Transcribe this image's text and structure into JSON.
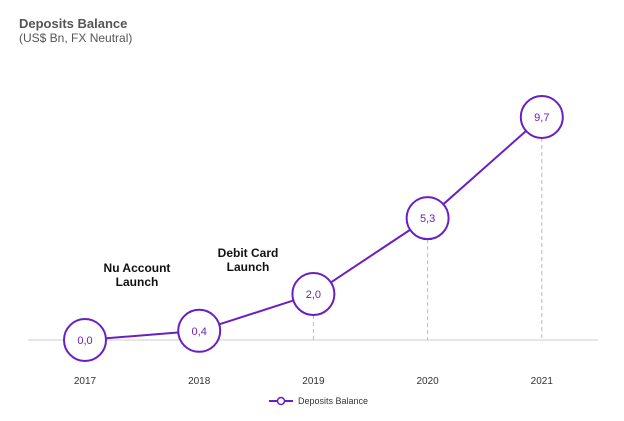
{
  "chart_data": {
    "type": "line",
    "title": "Deposits Balance",
    "subtitle": "(US$ Bn, FX Neutral)",
    "categories": [
      "2017",
      "2018",
      "2019",
      "2020",
      "2021"
    ],
    "series": [
      {
        "name": "Deposits Balance",
        "values": [
          0.0,
          0.4,
          2.0,
          5.3,
          9.7
        ],
        "labels": [
          "0,0",
          "0,4",
          "2,0",
          "5,3",
          "9,7"
        ]
      }
    ],
    "annotations": [
      {
        "lines": [
          "Nu Account",
          "Launch"
        ],
        "near": "2017"
      },
      {
        "lines": [
          "Debit Card",
          "Launch"
        ],
        "near": "2018"
      }
    ],
    "ylim": [
      0,
      10
    ],
    "grid": false,
    "legend_position": "bottom-center",
    "colors": {
      "series": "#6a1fc2",
      "dropline": "#bbbbbb",
      "axis": "#cccccc"
    }
  }
}
